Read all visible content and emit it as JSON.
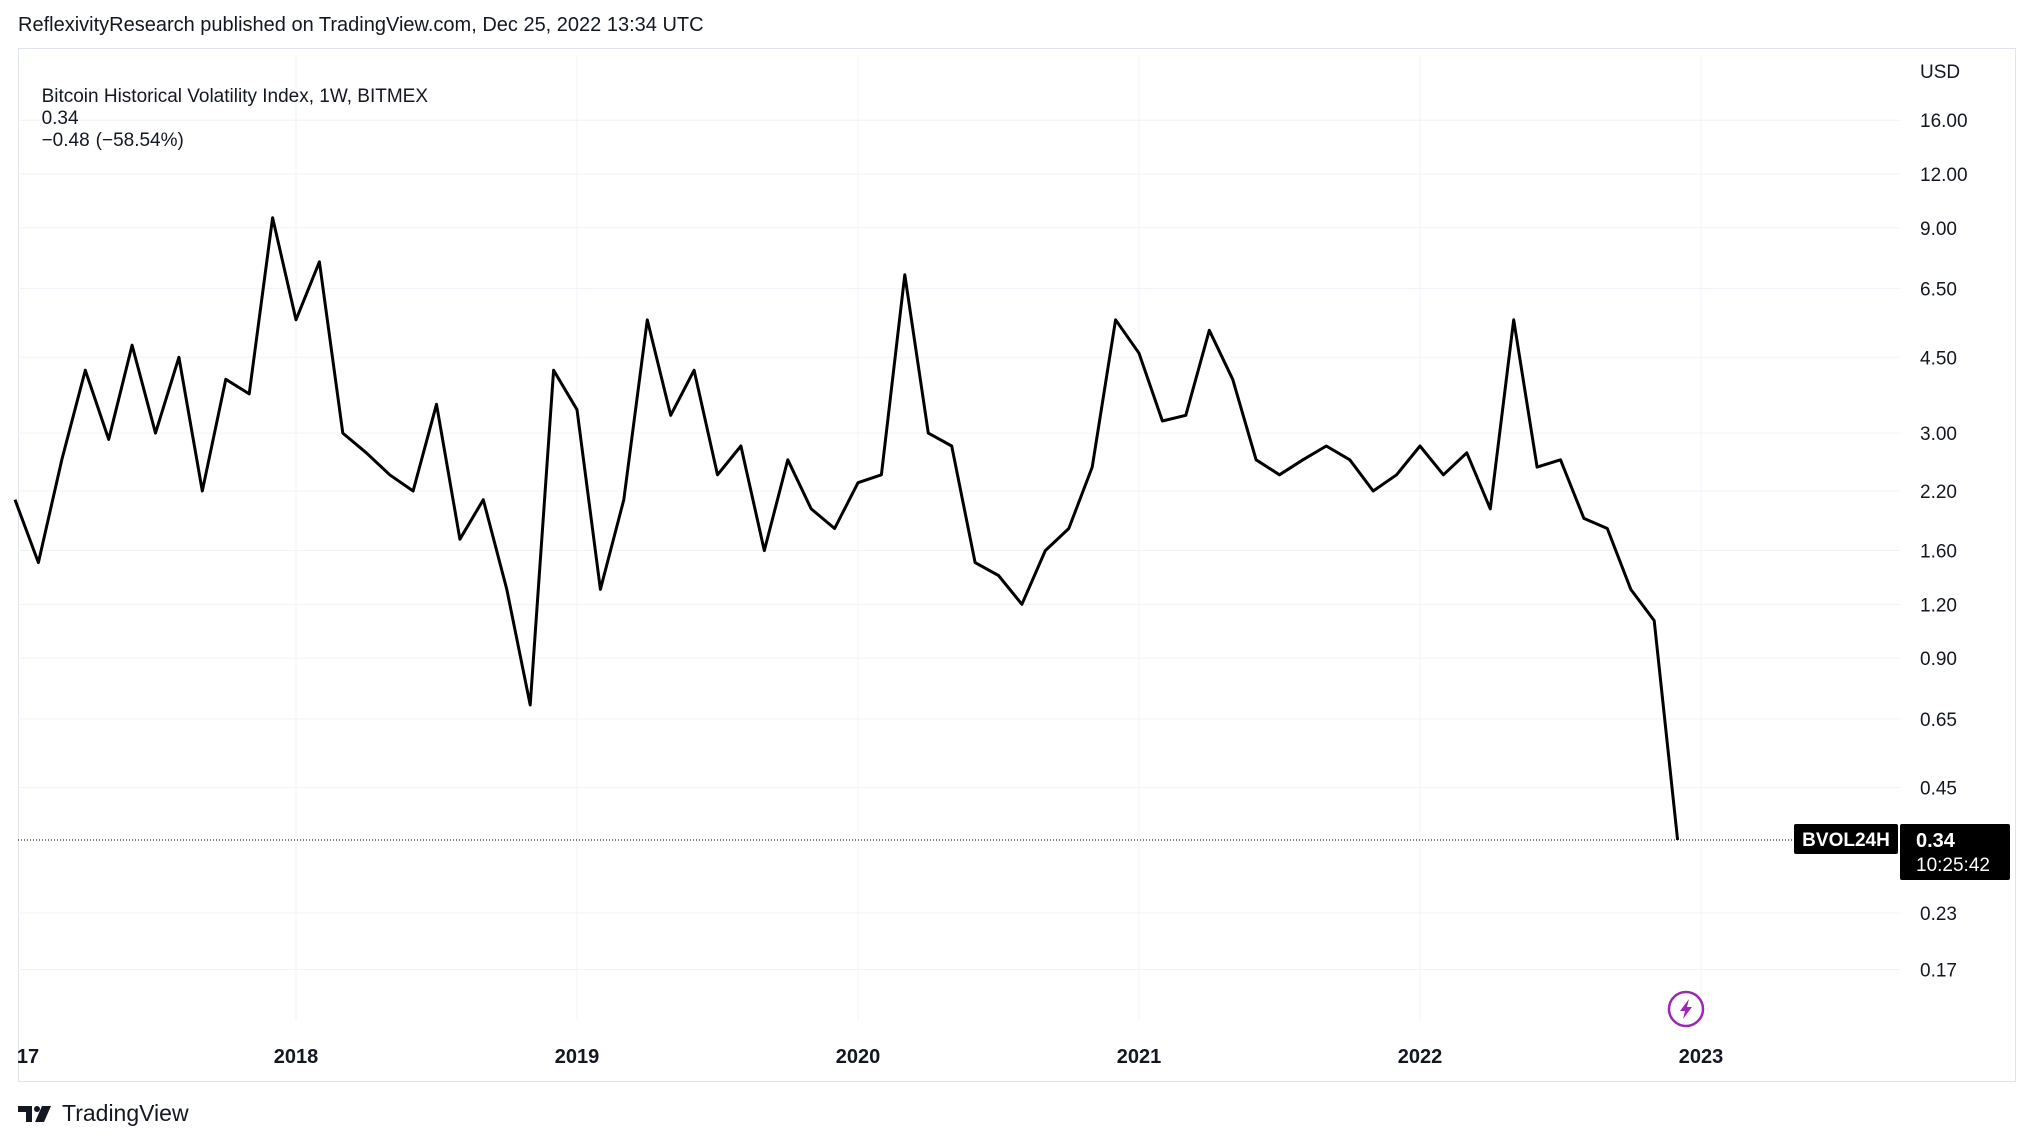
{
  "header": {
    "publisher_line": "ReflexivityResearch published on TradingView.com, Dec 25, 2022 13:34 UTC"
  },
  "legend": {
    "symbol_title": "Bitcoin Historical Volatility Index, 1W, BITMEX",
    "last_value": "0.34",
    "change": "−0.48",
    "change_pct": "(−58.54%)"
  },
  "price_scale": {
    "currency": "USD",
    "last_label_text": "0.34",
    "countdown": "10:25:42",
    "series_tag": "BVOL24H"
  },
  "footer": {
    "brand": "TradingView"
  },
  "colors": {
    "line": "#000000",
    "grid": "#f0f3fa",
    "badge_bg": "#000000",
    "badge_fg": "#ffffff",
    "event_icon": "#9c27b0"
  },
  "icons": {
    "event": "lightning-bolt-icon",
    "brand": "tradingview-logo-icon"
  },
  "chart_data": {
    "type": "line",
    "title": "Bitcoin Historical Volatility Index, 1W, BITMEX",
    "series": [
      {
        "name": "BVOL24H",
        "x": [
          "2017-01",
          "2017-02",
          "2017-03",
          "2017-04",
          "2017-05",
          "2017-06",
          "2017-07",
          "2017-08",
          "2017-09",
          "2017-10",
          "2017-11",
          "2017-12",
          "2018-01",
          "2018-02",
          "2018-03",
          "2018-04",
          "2018-05",
          "2018-06",
          "2018-07",
          "2018-08",
          "2018-09",
          "2018-10",
          "2018-11",
          "2018-12",
          "2019-01",
          "2019-02",
          "2019-03",
          "2019-04",
          "2019-05",
          "2019-06",
          "2019-07",
          "2019-08",
          "2019-09",
          "2019-10",
          "2019-11",
          "2019-12",
          "2020-01",
          "2020-02",
          "2020-03",
          "2020-04",
          "2020-05",
          "2020-06",
          "2020-07",
          "2020-08",
          "2020-09",
          "2020-10",
          "2020-11",
          "2020-12",
          "2021-01",
          "2021-02",
          "2021-03",
          "2021-04",
          "2021-05",
          "2021-06",
          "2021-07",
          "2021-08",
          "2021-09",
          "2021-10",
          "2021-11",
          "2021-12",
          "2022-01",
          "2022-02",
          "2022-03",
          "2022-04",
          "2022-05",
          "2022-06",
          "2022-07",
          "2022-08",
          "2022-09",
          "2022-10",
          "2022-11",
          "2022-12"
        ],
        "values": [
          2.1,
          1.5,
          2.6,
          4.2,
          2.9,
          4.8,
          3.0,
          4.5,
          2.2,
          4.0,
          3.7,
          9.5,
          5.5,
          7.5,
          3.0,
          2.7,
          2.4,
          2.2,
          3.5,
          1.7,
          2.1,
          1.3,
          0.7,
          4.2,
          3.4,
          1.3,
          2.1,
          5.5,
          3.3,
          4.2,
          2.4,
          2.8,
          1.6,
          2.6,
          2.0,
          1.8,
          2.3,
          2.4,
          7.0,
          3.0,
          2.8,
          1.5,
          1.4,
          1.2,
          1.6,
          1.8,
          2.5,
          5.5,
          4.6,
          3.2,
          3.3,
          5.2,
          4.0,
          2.6,
          2.4,
          2.6,
          2.8,
          2.6,
          2.2,
          2.4,
          2.8,
          2.4,
          2.7,
          2.0,
          5.5,
          2.5,
          2.6,
          1.9,
          1.8,
          1.3,
          1.1,
          0.34
        ]
      }
    ],
    "y_scale": "log",
    "ylabel": "USD",
    "y_ticks": [
      16.0,
      12.0,
      9.0,
      6.5,
      4.5,
      3.0,
      2.2,
      1.6,
      1.2,
      0.9,
      0.65,
      0.45,
      0.34,
      0.23,
      0.17
    ],
    "y_tick_labels": [
      "16.00",
      "12.00",
      "9.00",
      "6.50",
      "4.50",
      "3.00",
      "2.20",
      "1.60",
      "1.20",
      "0.90",
      "0.65",
      "0.45",
      "0.23",
      "0.17"
    ],
    "x_tick_labels": [
      "17",
      "2018",
      "2019",
      "2020",
      "2021",
      "2022",
      "2023"
    ],
    "grid": true,
    "last_price_line": 0.34
  }
}
